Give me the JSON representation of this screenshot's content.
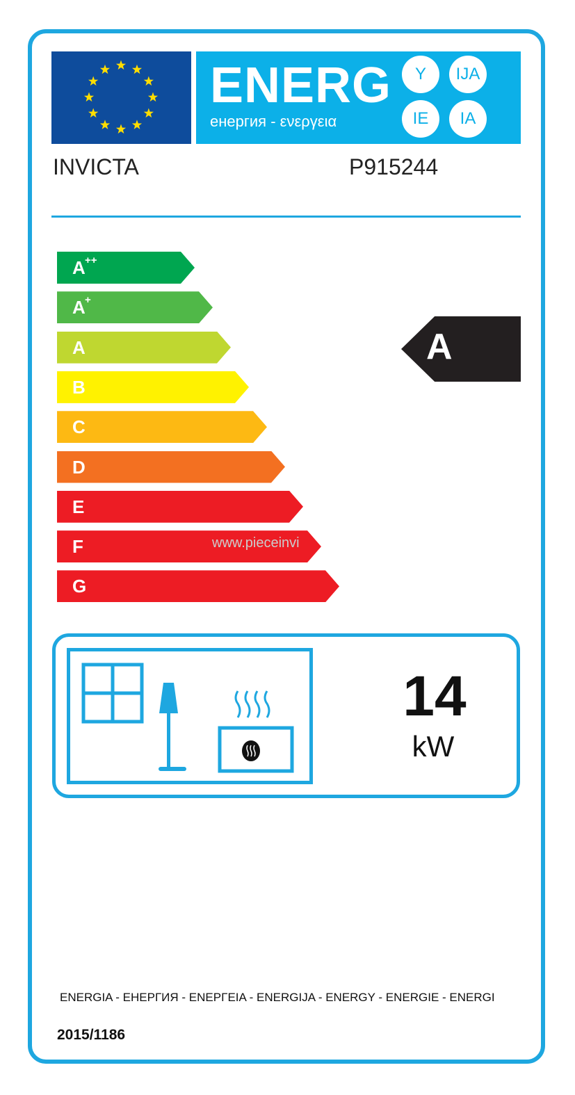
{
  "header": {
    "energy_title": "ENERG",
    "subtitle": "енергия - ενεργεια",
    "suffixes": [
      "Y",
      "IJA",
      "IE",
      "IA"
    ]
  },
  "supplier": "INVICTA",
  "model": "P915244",
  "scale": {
    "classes": [
      {
        "label": "A",
        "sup": "++",
        "color": "#00a650"
      },
      {
        "label": "A",
        "sup": "+",
        "color": "#50b848"
      },
      {
        "label": "A",
        "sup": "",
        "color": "#bfd730"
      },
      {
        "label": "B",
        "sup": "",
        "color": "#fff200"
      },
      {
        "label": "C",
        "sup": "",
        "color": "#fdb913"
      },
      {
        "label": "D",
        "sup": "",
        "color": "#f37021"
      },
      {
        "label": "E",
        "sup": "",
        "color": "#ed1c24"
      },
      {
        "label": "F",
        "sup": "",
        "color": "#ed1c24"
      },
      {
        "label": "G",
        "sup": "",
        "color": "#ed1c24"
      }
    ]
  },
  "rating": {
    "class": "A",
    "color": "#231f20"
  },
  "watermark": "www.pieceinvi",
  "output": {
    "value": "14",
    "unit": "kW"
  },
  "footer": {
    "languages": "ENERGIA - ЕНЕРГИЯ - ΕΝΕΡΓΕΙΑ - ENERGIJA - ENERGY - ENERGIE - ENERGI",
    "regulation": "2015/1186"
  },
  "colors": {
    "accent": "#1ea7e0",
    "eu_blue": "#0e4c9c",
    "star": "#ffdd00"
  }
}
